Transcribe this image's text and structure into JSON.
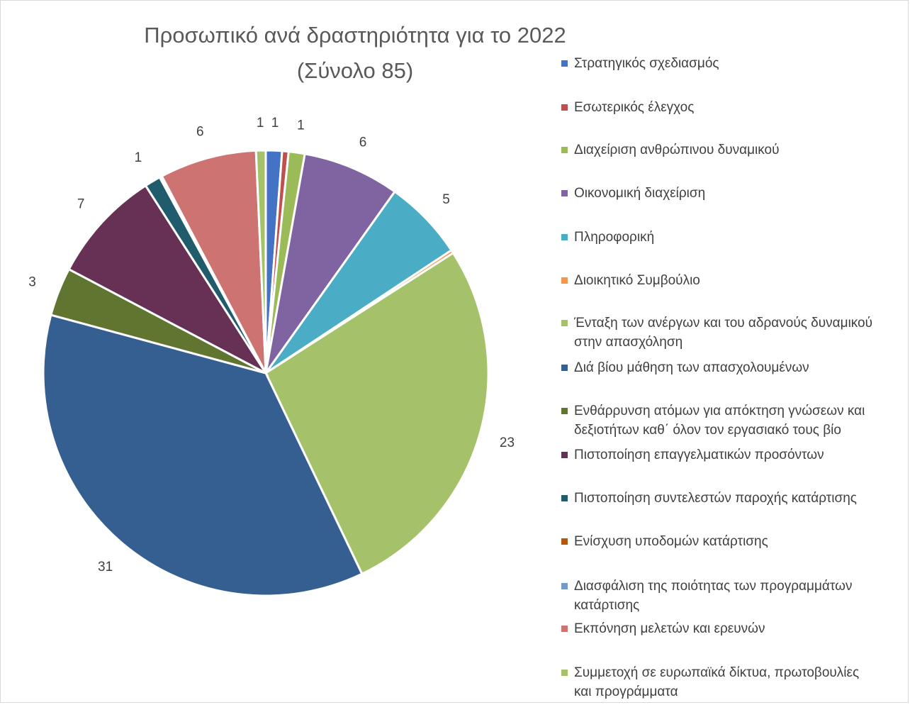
{
  "chart_data": {
    "type": "pie",
    "title": "Προσωπικό ανά δραστηριότητα για το 2022",
    "subtitle": "(Σύνολο 85)",
    "legend_position": "right",
    "slices": [
      {
        "name": "Στρατηγικός σχεδιασμός",
        "value": 1,
        "label": "1",
        "color": "#4472c4"
      },
      {
        "name": "Εσωτερικός έλεγχος",
        "value": 0.4,
        "label": "",
        "color": "#c0504d"
      },
      {
        "name": "Διαχείριση ανθρώπινου δυναμικού",
        "value": 1,
        "label": "1",
        "color": "#9bbb59"
      },
      {
        "name": "Οικονομική διαχείριση",
        "value": 6,
        "label": "6",
        "color": "#8064a2"
      },
      {
        "name": "Πληροφορική",
        "value": 5,
        "label": "5",
        "color": "#4bacc6"
      },
      {
        "name": "Διοικητικό Συμβούλιο",
        "value": 0.2,
        "label": "",
        "color": "#f79646"
      },
      {
        "name": "Ένταξη των ανέργων και του αδρανούς δυναμικού\nστην απασχόληση",
        "value": 23,
        "label": "23",
        "color": "#a5c26b"
      },
      {
        "name": "Διά βίου μάθηση των απασχολουμένων",
        "value": 31,
        "label": "31",
        "color": "#355f91"
      },
      {
        "name": "Ενθάρρυνση ατόμων για απόκτηση γνώσεων και\nδεξιοτήτων καθ΄ όλον τον εργασιακό τους βίο",
        "value": 3,
        "label": "3",
        "color": "#5f7530"
      },
      {
        "name": "Πιστοποίηση επαγγελματικών προσόντων",
        "value": 7,
        "label": "7",
        "color": "#673156"
      },
      {
        "name": "Πιστοποίηση συντελεστών παροχής κατάρτισης",
        "value": 1,
        "label": "1",
        "color": "#215c6d"
      },
      {
        "name": "Ενίσχυση υποδομών κατάρτισης",
        "value": 0.1,
        "label": "",
        "color": "#b65708"
      },
      {
        "name": "Διασφάλιση της ποιότητας των προγραμμάτων\nκατάρτισης",
        "value": 0.05,
        "label": "",
        "color": "#729aca"
      },
      {
        "name": "Εκπόνηση μελετών και ερευνών",
        "value": 6,
        "label": "6",
        "color": "#cd7371"
      },
      {
        "name": "Συμμετοχή σε ευρωπαϊκά δίκτυα, πρωτοβουλίες\nκαι προγράμματα",
        "value": 0.6,
        "label": "1",
        "color": "#a5c26b"
      }
    ]
  }
}
